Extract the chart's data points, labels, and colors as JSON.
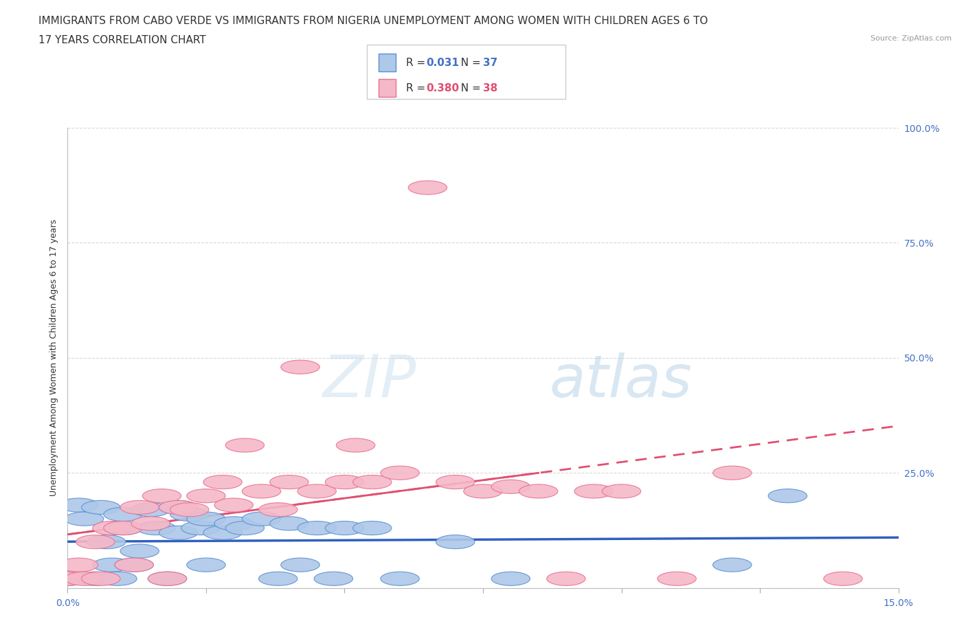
{
  "title_line1": "IMMIGRANTS FROM CABO VERDE VS IMMIGRANTS FROM NIGERIA UNEMPLOYMENT AMONG WOMEN WITH CHILDREN AGES 6 TO",
  "title_line2": "17 YEARS CORRELATION CHART",
  "source": "Source: ZipAtlas.com",
  "ylabel": "Unemployment Among Women with Children Ages 6 to 17 years",
  "xlim": [
    0.0,
    0.15
  ],
  "ylim": [
    0.0,
    1.0
  ],
  "xtick_values": [
    0.0,
    0.025,
    0.05,
    0.075,
    0.1,
    0.125,
    0.15
  ],
  "xtick_labels": [
    "0.0%",
    "",
    "",
    "",
    "",
    "",
    "15.0%"
  ],
  "ytick_values": [
    0.0,
    0.25,
    0.5,
    0.75,
    1.0
  ],
  "ytick_labels_right": [
    "",
    "25.0%",
    "50.0%",
    "75.0%",
    "100.0%"
  ],
  "cabo_verde_R": 0.031,
  "cabo_verde_N": 37,
  "nigeria_R": 0.38,
  "nigeria_N": 38,
  "cabo_verde_color": "#adc8e8",
  "nigeria_color": "#f5b8c8",
  "cabo_verde_edge_color": "#5b8fd4",
  "nigeria_edge_color": "#e87090",
  "cabo_verde_line_color": "#3060c0",
  "nigeria_line_color": "#e05070",
  "cabo_verde_x": [
    0.0,
    0.002,
    0.003,
    0.005,
    0.006,
    0.007,
    0.008,
    0.009,
    0.01,
    0.01,
    0.012,
    0.013,
    0.015,
    0.016,
    0.018,
    0.02,
    0.02,
    0.022,
    0.024,
    0.025,
    0.025,
    0.028,
    0.03,
    0.032,
    0.035,
    0.038,
    0.04,
    0.042,
    0.045,
    0.048,
    0.05,
    0.055,
    0.06,
    0.07,
    0.08,
    0.12,
    0.13
  ],
  "cabo_verde_y": [
    0.02,
    0.18,
    0.15,
    0.02,
    0.175,
    0.1,
    0.05,
    0.02,
    0.16,
    0.13,
    0.05,
    0.08,
    0.17,
    0.13,
    0.02,
    0.175,
    0.12,
    0.16,
    0.13,
    0.05,
    0.15,
    0.12,
    0.14,
    0.13,
    0.15,
    0.02,
    0.14,
    0.05,
    0.13,
    0.02,
    0.13,
    0.13,
    0.02,
    0.1,
    0.02,
    0.05,
    0.2
  ],
  "nigeria_x": [
    0.0,
    0.002,
    0.003,
    0.005,
    0.006,
    0.008,
    0.01,
    0.012,
    0.013,
    0.015,
    0.017,
    0.018,
    0.02,
    0.022,
    0.025,
    0.028,
    0.03,
    0.032,
    0.035,
    0.038,
    0.04,
    0.042,
    0.045,
    0.05,
    0.052,
    0.055,
    0.06,
    0.065,
    0.07,
    0.075,
    0.08,
    0.085,
    0.09,
    0.095,
    0.1,
    0.11,
    0.12,
    0.14
  ],
  "nigeria_y": [
    0.02,
    0.05,
    0.02,
    0.1,
    0.02,
    0.13,
    0.13,
    0.05,
    0.175,
    0.14,
    0.2,
    0.02,
    0.175,
    0.17,
    0.2,
    0.23,
    0.18,
    0.31,
    0.21,
    0.17,
    0.23,
    0.48,
    0.21,
    0.23,
    0.31,
    0.23,
    0.25,
    0.87,
    0.23,
    0.21,
    0.22,
    0.21,
    0.02,
    0.21,
    0.21,
    0.02,
    0.25,
    0.02
  ],
  "watermark_zip": "ZIP",
  "watermark_atlas": "atlas",
  "background_color": "#ffffff",
  "grid_color": "#d8d8d8",
  "title_fontsize": 11,
  "axis_label_fontsize": 9,
  "tick_fontsize": 10
}
